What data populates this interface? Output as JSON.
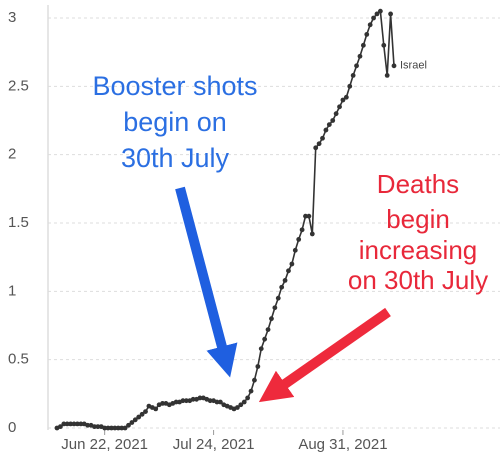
{
  "chart_data": {
    "type": "line",
    "x": [
      "2021-06-08",
      "2021-06-09",
      "2021-06-10",
      "2021-06-11",
      "2021-06-12",
      "2021-06-13",
      "2021-06-14",
      "2021-06-15",
      "2021-06-16",
      "2021-06-17",
      "2021-06-18",
      "2021-06-19",
      "2021-06-20",
      "2021-06-21",
      "2021-06-22",
      "2021-06-23",
      "2021-06-24",
      "2021-06-25",
      "2021-06-26",
      "2021-06-27",
      "2021-06-28",
      "2021-06-29",
      "2021-06-30",
      "2021-07-01",
      "2021-07-02",
      "2021-07-03",
      "2021-07-04",
      "2021-07-05",
      "2021-07-06",
      "2021-07-07",
      "2021-07-08",
      "2021-07-09",
      "2021-07-10",
      "2021-07-11",
      "2021-07-12",
      "2021-07-13",
      "2021-07-14",
      "2021-07-15",
      "2021-07-16",
      "2021-07-17",
      "2021-07-18",
      "2021-07-19",
      "2021-07-20",
      "2021-07-21",
      "2021-07-22",
      "2021-07-23",
      "2021-07-24",
      "2021-07-25",
      "2021-07-26",
      "2021-07-27",
      "2021-07-28",
      "2021-07-29",
      "2021-07-30",
      "2021-07-31",
      "2021-08-01",
      "2021-08-02",
      "2021-08-03",
      "2021-08-04",
      "2021-08-05",
      "2021-08-06",
      "2021-08-07",
      "2021-08-08",
      "2021-08-09",
      "2021-08-10",
      "2021-08-11",
      "2021-08-12",
      "2021-08-13",
      "2021-08-14",
      "2021-08-15",
      "2021-08-16",
      "2021-08-17",
      "2021-08-18",
      "2021-08-19",
      "2021-08-20",
      "2021-08-21",
      "2021-08-22",
      "2021-08-23",
      "2021-08-24",
      "2021-08-25",
      "2021-08-26",
      "2021-08-27",
      "2021-08-28",
      "2021-08-29",
      "2021-08-30",
      "2021-08-31",
      "2021-09-01",
      "2021-09-02",
      "2021-09-03",
      "2021-09-04",
      "2021-09-05",
      "2021-09-06",
      "2021-09-07",
      "2021-09-08",
      "2021-09-09",
      "2021-09-10",
      "2021-09-11",
      "2021-09-12",
      "2021-09-13",
      "2021-09-14",
      "2021-09-15"
    ],
    "series": [
      {
        "name": "Israel",
        "color": "#333333",
        "values": [
          0,
          0.01,
          0.03,
          0.03,
          0.03,
          0.03,
          0.03,
          0.03,
          0.03,
          0.02,
          0.02,
          0.01,
          0.01,
          0.01,
          0,
          0,
          0,
          0,
          0,
          0,
          0,
          0.02,
          0.04,
          0.06,
          0.08,
          0.1,
          0.12,
          0.16,
          0.15,
          0.14,
          0.17,
          0.18,
          0.18,
          0.17,
          0.18,
          0.19,
          0.19,
          0.2,
          0.2,
          0.2,
          0.21,
          0.21,
          0.22,
          0.22,
          0.21,
          0.2,
          0.2,
          0.19,
          0.19,
          0.17,
          0.16,
          0.15,
          0.14,
          0.15,
          0.17,
          0.19,
          0.22,
          0.27,
          0.35,
          0.45,
          0.58,
          0.65,
          0.72,
          0.8,
          0.88,
          0.95,
          1.03,
          1.08,
          1.15,
          1.2,
          1.3,
          1.38,
          1.45,
          1.55,
          1.55,
          1.42,
          2.05,
          2.08,
          2.12,
          2.18,
          2.22,
          2.25,
          2.3,
          2.35,
          2.4,
          2.42,
          2.5,
          2.58,
          2.65,
          2.72,
          2.8,
          2.88,
          2.95,
          3.0,
          3.03,
          3.05,
          2.8,
          2.58,
          3.03,
          2.65
        ]
      }
    ],
    "xlim": [
      "2021-06-08",
      "2021-09-15"
    ],
    "xticks": [
      {
        "value": "2021-06-22",
        "label": "Jun 22, 2021"
      },
      {
        "value": "2021-07-24",
        "label": "Jul 24, 2021"
      },
      {
        "value": "2021-08-31",
        "label": "Aug 31, 2021"
      }
    ],
    "ylim": [
      0,
      3
    ],
    "yticks": [
      0,
      0.5,
      1,
      1.5,
      2,
      2.5,
      3
    ],
    "grid": true,
    "annotations": [
      {
        "lines": [
          "Booster shots",
          "begin on",
          "30th July"
        ],
        "color": "#2b6fe2"
      },
      {
        "lines": [
          "Deaths",
          "begin",
          "increasing",
          "on 30th July"
        ],
        "color": "#e8283a"
      }
    ]
  }
}
